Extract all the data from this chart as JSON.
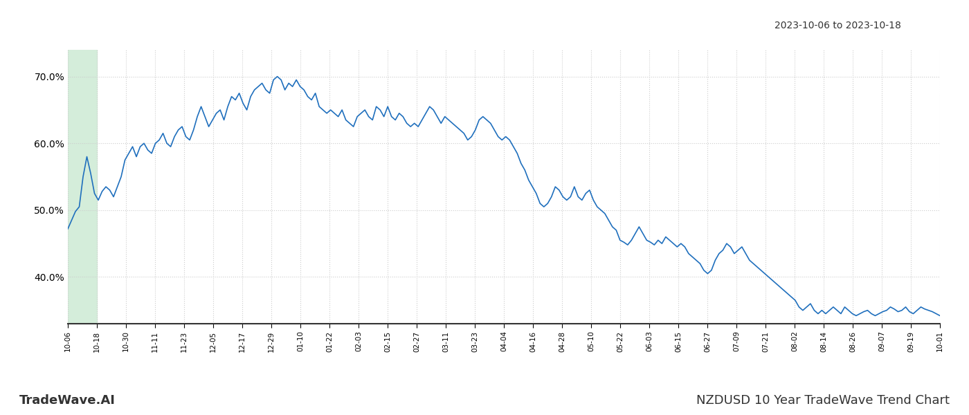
{
  "title": "NZDUSD 10 Year TradeWave Trend Chart",
  "date_range_text": "2023-10-06 to 2023-10-18",
  "footer_left": "TradeWave.AI",
  "footer_right": "NZDUSD 10 Year TradeWave Trend Chart",
  "line_color": "#1f6fbd",
  "line_width": 1.2,
  "highlight_color": "#d4edda",
  "background_color": "#ffffff",
  "grid_color": "#cccccc",
  "grid_style": "dotted",
  "ylim": [
    33,
    74
  ],
  "yticks": [
    40.0,
    50.0,
    60.0,
    70.0
  ],
  "xtick_labels": [
    "10-06",
    "10-18",
    "10-30",
    "11-11",
    "11-23",
    "12-05",
    "12-17",
    "12-29",
    "01-10",
    "01-22",
    "02-03",
    "02-15",
    "02-27",
    "03-11",
    "03-23",
    "04-04",
    "04-16",
    "04-28",
    "05-10",
    "05-22",
    "06-03",
    "06-15",
    "06-27",
    "07-09",
    "07-21",
    "08-02",
    "08-14",
    "08-26",
    "09-07",
    "09-19",
    "10-01"
  ],
  "values": [
    47.2,
    48.5,
    49.8,
    50.5,
    55.0,
    58.0,
    55.5,
    52.5,
    51.5,
    52.8,
    53.5,
    53.0,
    52.0,
    53.5,
    55.0,
    57.5,
    58.5,
    59.5,
    58.0,
    59.5,
    60.0,
    59.0,
    58.5,
    60.0,
    60.5,
    61.5,
    60.0,
    59.5,
    61.0,
    62.0,
    62.5,
    61.0,
    60.5,
    62.0,
    64.0,
    65.5,
    64.0,
    62.5,
    63.5,
    64.5,
    65.0,
    63.5,
    65.5,
    67.0,
    66.5,
    67.5,
    66.0,
    65.0,
    67.0,
    68.0,
    68.5,
    69.0,
    68.0,
    67.5,
    69.5,
    70.0,
    69.5,
    68.0,
    69.0,
    68.5,
    69.5,
    68.5,
    68.0,
    67.0,
    66.5,
    67.5,
    65.5,
    65.0,
    64.5,
    65.0,
    64.5,
    64.0,
    65.0,
    63.5,
    63.0,
    62.5,
    64.0,
    64.5,
    65.0,
    64.0,
    63.5,
    65.5,
    65.0,
    64.0,
    65.5,
    64.0,
    63.5,
    64.5,
    64.0,
    63.0,
    62.5,
    63.0,
    62.5,
    63.5,
    64.5,
    65.5,
    65.0,
    64.0,
    63.0,
    64.0,
    63.5,
    63.0,
    62.5,
    62.0,
    61.5,
    60.5,
    61.0,
    62.0,
    63.5,
    64.0,
    63.5,
    63.0,
    62.0,
    61.0,
    60.5,
    61.0,
    60.5,
    59.5,
    58.5,
    57.0,
    56.0,
    54.5,
    53.5,
    52.5,
    51.0,
    50.5,
    51.0,
    52.0,
    53.5,
    53.0,
    52.0,
    51.5,
    52.0,
    53.5,
    52.0,
    51.5,
    52.5,
    53.0,
    51.5,
    50.5,
    50.0,
    49.5,
    48.5,
    47.5,
    47.0,
    45.5,
    45.2,
    44.8,
    45.5,
    46.5,
    47.5,
    46.5,
    45.5,
    45.2,
    44.8,
    45.5,
    45.0,
    46.0,
    45.5,
    45.0,
    44.5,
    45.0,
    44.5,
    43.5,
    43.0,
    42.5,
    42.0,
    41.0,
    40.5,
    41.0,
    42.5,
    43.5,
    44.0,
    45.0,
    44.5,
    43.5,
    44.0,
    44.5,
    43.5,
    42.5,
    42.0,
    41.5,
    41.0,
    40.5,
    40.0,
    39.5,
    39.0,
    38.5,
    38.0,
    37.5,
    37.0,
    36.5,
    35.5,
    35.0,
    35.5,
    36.0,
    35.0,
    34.5,
    35.0,
    34.5,
    35.0,
    35.5,
    35.0,
    34.5,
    35.5,
    35.0,
    34.5,
    34.2,
    34.5,
    34.8,
    35.0,
    34.5,
    34.2,
    34.5,
    34.8,
    35.0,
    35.5,
    35.2,
    34.8,
    35.0,
    35.5,
    34.8,
    34.5,
    35.0,
    35.5,
    35.2,
    35.0,
    34.8,
    34.5,
    34.2
  ],
  "highlight_n_points": 15
}
